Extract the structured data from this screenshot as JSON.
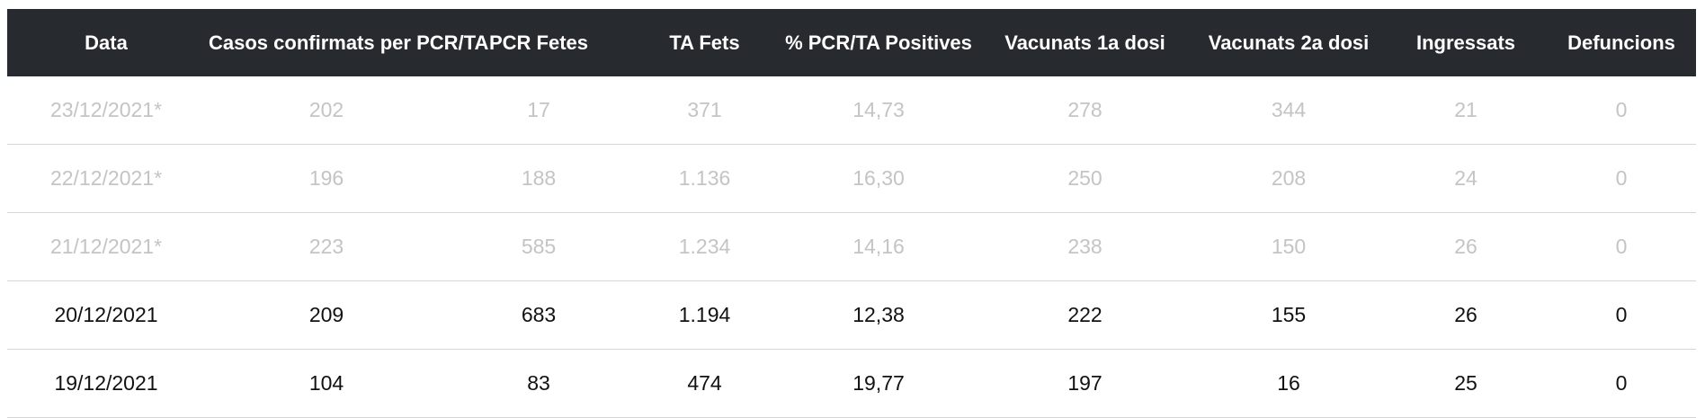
{
  "table": {
    "header": [
      "Data",
      "Casos confirmats per PCR/TA",
      "PCR Fetes",
      "TA Fets",
      "% PCR/TA Positives",
      "Vacunats 1a dosi",
      "Vacunats 2a dosi",
      "Ingressats",
      "Defuncions"
    ],
    "rows": [
      [
        "23/12/2021*",
        "202",
        "17",
        "371",
        "14,73",
        "278",
        "344",
        "21",
        "0"
      ],
      [
        "22/12/2021*",
        "196",
        "188",
        "1.136",
        "16,30",
        "250",
        "208",
        "24",
        "0"
      ],
      [
        "21/12/2021*",
        "223",
        "585",
        "1.234",
        "14,16",
        "238",
        "150",
        "26",
        "0"
      ],
      [
        "20/12/2021",
        "209",
        "683",
        "1.194",
        "12,38",
        "222",
        "155",
        "26",
        "0"
      ],
      [
        "19/12/2021",
        "104",
        "83",
        "474",
        "19,77",
        "197",
        "16",
        "25",
        "0"
      ]
    ]
  }
}
